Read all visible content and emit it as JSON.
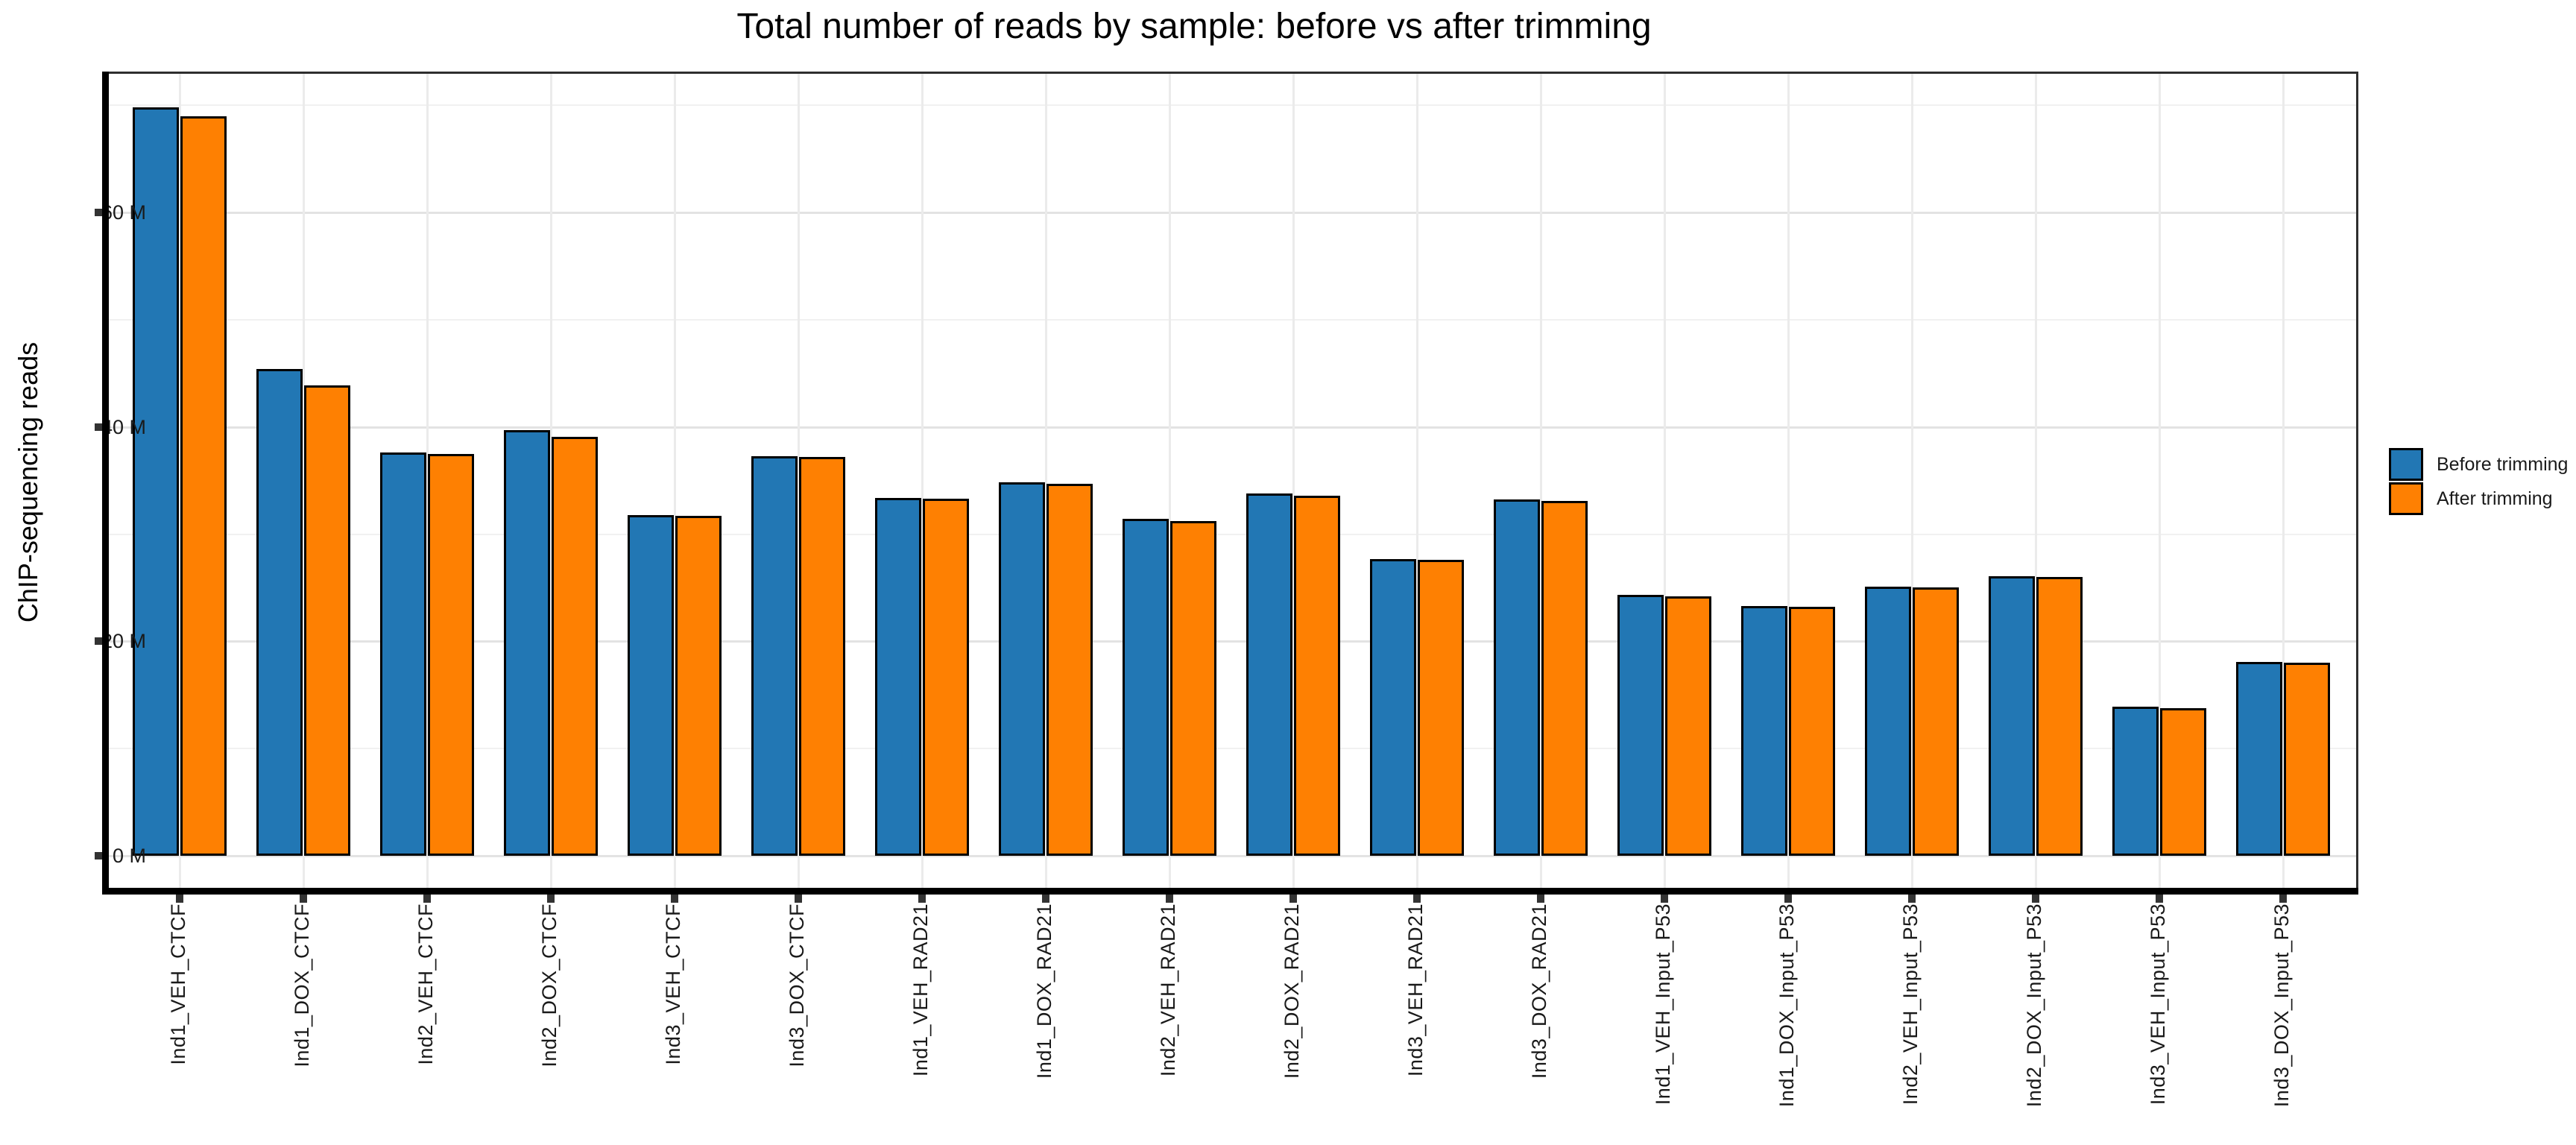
{
  "title": "Total number of reads by sample: before vs after trimming",
  "chart_data": {
    "type": "bar",
    "title": "Total number of reads by sample: before vs after trimming",
    "xlabel": "",
    "ylabel": "ChIP-sequencing reads",
    "ylim": [
      0,
      73
    ],
    "grid": "major and minor horizontal gridlines, vertical gridline at each category center",
    "legend_position": "right, outside panel, vertically centered",
    "unit": "million reads",
    "y_ticks": [
      {
        "value": 0,
        "label": "0 M"
      },
      {
        "value": 20,
        "label": "20 M"
      },
      {
        "value": 40,
        "label": "40 M"
      },
      {
        "value": 60,
        "label": "60 M"
      }
    ],
    "y_minor_ticks": [
      10,
      30,
      50,
      70
    ],
    "categories": [
      "Ind1_VEH_CTCF",
      "Ind1_DOX_CTCF",
      "Ind2_VEH_CTCF",
      "Ind2_DOX_CTCF",
      "Ind3_VEH_CTCF",
      "Ind3_DOX_CTCF",
      "Ind1_VEH_RAD21",
      "Ind1_DOX_RAD21",
      "Ind2_VEH_RAD21",
      "Ind2_DOX_RAD21",
      "Ind3_VEH_RAD21",
      "Ind3_DOX_RAD21",
      "Ind1_VEH_Input_P53",
      "Ind1_DOX_Input_P53",
      "Ind2_VEH_Input_P53",
      "Ind2_DOX_Input_P53",
      "Ind3_VEH_Input_P53",
      "Ind3_DOX_Input_P53"
    ],
    "series": [
      {
        "name": "Before trimming",
        "color": "#2277b4",
        "values": [
          69.8,
          45.4,
          37.6,
          39.7,
          31.8,
          37.3,
          33.4,
          34.8,
          31.4,
          33.8,
          27.7,
          33.2,
          24.3,
          23.3,
          25.1,
          26.1,
          13.9,
          18.1
        ]
      },
      {
        "name": "After trimming",
        "color": "#fe8002",
        "values": [
          69.0,
          43.9,
          37.5,
          39.1,
          31.7,
          37.2,
          33.3,
          34.7,
          31.2,
          33.6,
          27.6,
          33.1,
          24.2,
          23.2,
          25.0,
          26.0,
          13.8,
          18.0
        ]
      }
    ]
  },
  "colors": {
    "before": "#2277b4",
    "after": "#fe8002",
    "bar_border": "#000000",
    "axis_line": "#000000",
    "panel_border": "#2e2e2e",
    "grid_major": "#e3e3e3",
    "grid_minor": "#f1f1f1",
    "grid_vertical": "#ebebeb",
    "tick_mark": "#333333",
    "background": "#ffffff"
  }
}
